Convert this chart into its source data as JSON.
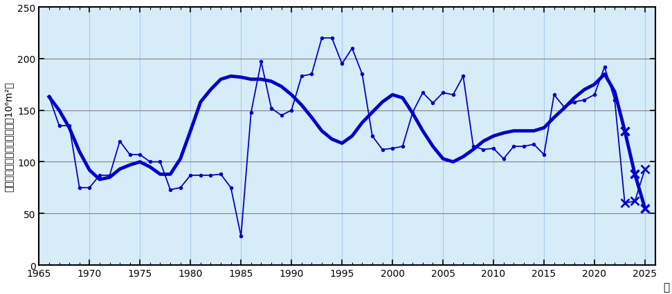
{
  "bg_color": "#d6ecf8",
  "line_color": "#0000cc",
  "ylim": [
    0,
    250
  ],
  "xlim": [
    1965,
    2026
  ],
  "yticks": [
    0,
    50,
    100,
    150,
    200,
    250
  ],
  "xticks": [
    1965,
    1970,
    1975,
    1980,
    1985,
    1990,
    1995,
    2000,
    2005,
    2010,
    2015,
    2020,
    2025
  ],
  "ylabel": "北太平洋回帰線水の断面積（10⁶m²）",
  "xlabel": "年",
  "annual_years": [
    1966,
    1967,
    1968,
    1969,
    1970,
    1971,
    1972,
    1973,
    1974,
    1975,
    1976,
    1977,
    1978,
    1979,
    1980,
    1981,
    1982,
    1983,
    1984,
    1985,
    1986,
    1987,
    1988,
    1989,
    1990,
    1991,
    1992,
    1993,
    1994,
    1995,
    1996,
    1997,
    1998,
    1999,
    2000,
    2001,
    2002,
    2003,
    2004,
    2005,
    2006,
    2007,
    2008,
    2009,
    2010,
    2011,
    2012,
    2013,
    2014,
    2015,
    2016,
    2017,
    2018,
    2019,
    2020,
    2021,
    2022,
    2023,
    2024,
    2025
  ],
  "annual_values": [
    163,
    135,
    135,
    75,
    75,
    87,
    87,
    120,
    107,
    107,
    100,
    100,
    73,
    75,
    87,
    87,
    87,
    88,
    75,
    28,
    148,
    197,
    152,
    145,
    150,
    183,
    185,
    220,
    220,
    195,
    210,
    185,
    125,
    112,
    113,
    115,
    148,
    167,
    157,
    167,
    165,
    183,
    115,
    112,
    113,
    103,
    115,
    115,
    117,
    107,
    165,
    153,
    158,
    160,
    165,
    192,
    160,
    60,
    62,
    93
  ],
  "smooth_years": [
    1966,
    1967,
    1968,
    1969,
    1970,
    1971,
    1972,
    1973,
    1974,
    1975,
    1976,
    1977,
    1978,
    1979,
    1980,
    1981,
    1982,
    1983,
    1984,
    1985,
    1986,
    1987,
    1988,
    1989,
    1990,
    1991,
    1992,
    1993,
    1994,
    1995,
    1996,
    1997,
    1998,
    1999,
    2000,
    2001,
    2002,
    2003,
    2004,
    2005,
    2006,
    2007,
    2008,
    2009,
    2010,
    2011,
    2012,
    2013,
    2014,
    2015,
    2016,
    2017,
    2018,
    2019,
    2020,
    2021,
    2022,
    2023,
    2024,
    2025
  ],
  "smooth_values": [
    163,
    150,
    133,
    110,
    92,
    83,
    85,
    93,
    97,
    100,
    95,
    88,
    88,
    103,
    130,
    158,
    170,
    180,
    183,
    182,
    180,
    180,
    178,
    173,
    165,
    155,
    143,
    130,
    122,
    118,
    125,
    138,
    148,
    158,
    165,
    162,
    147,
    130,
    115,
    103,
    100,
    105,
    112,
    120,
    125,
    128,
    130,
    130,
    130,
    133,
    143,
    152,
    162,
    170,
    175,
    185,
    168,
    130,
    88,
    55
  ],
  "dot_end_year": 2022,
  "cross_annual_years": [
    2023,
    2024,
    2025
  ],
  "cross_smooth_years": [
    2023,
    2024,
    2025
  ],
  "thin_lw": 1.3,
  "thick_lw": 3.5,
  "dot_size": 4,
  "cross_size": 8,
  "cross_lw": 2.0
}
